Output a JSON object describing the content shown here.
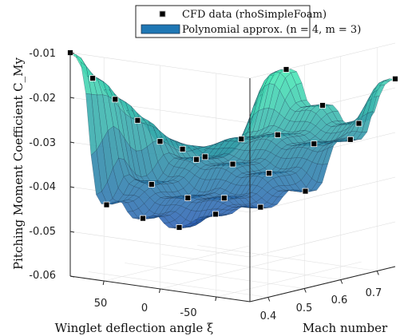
{
  "chart_data": {
    "type": "surface3d",
    "title": "",
    "zlabel": "Pitching Moment Coefficient C_My",
    "xlabel": "Winglet deflection angle ξ",
    "ylabel": "Mach number",
    "z_ticks": [
      "-0.06",
      "-0.05",
      "-0.04",
      "-0.03",
      "-0.02",
      "-0.01"
    ],
    "xi_ticks": [
      "50",
      "0",
      "-50"
    ],
    "mach_ticks": [
      "0.4",
      "0.5",
      "0.6",
      "0.7"
    ],
    "zlim": [
      -0.06,
      -0.01
    ],
    "xi_range": [
      -80,
      80
    ],
    "mach_range": [
      0.35,
      0.75
    ],
    "grid": true,
    "legend_position": "top",
    "legend": [
      {
        "label": "CFD data (rhoSimpleFoam)",
        "marker": "square",
        "color": "#000000"
      },
      {
        "label": "Polynomial approx. (n = 4, m = 3)",
        "marker": "patch",
        "color": "#1f77b4"
      }
    ],
    "colors": {
      "surface_low": "#2c5fb5",
      "surface_mid": "#2f8fa8",
      "surface_high": "#46e6b4",
      "edge": "#1b3550"
    },
    "cfd_points": [
      {
        "xi": 80,
        "mach": 0.35,
        "cmy": -0.01
      },
      {
        "xi": 60,
        "mach": 0.35,
        "cmy": -0.015
      },
      {
        "xi": 40,
        "mach": 0.35,
        "cmy": -0.019
      },
      {
        "xi": 20,
        "mach": 0.35,
        "cmy": -0.023
      },
      {
        "xi": 0,
        "mach": 0.35,
        "cmy": -0.027
      },
      {
        "xi": -20,
        "mach": 0.35,
        "cmy": -0.028
      },
      {
        "xi": -40,
        "mach": 0.35,
        "cmy": -0.029
      },
      {
        "xi": 80,
        "mach": 0.45,
        "cmy": -0.046
      },
      {
        "xi": 40,
        "mach": 0.45,
        "cmy": -0.04
      },
      {
        "xi": 0,
        "mach": 0.45,
        "cmy": -0.033
      },
      {
        "xi": -40,
        "mach": 0.45,
        "cmy": -0.027
      },
      {
        "xi": -80,
        "mach": 0.45,
        "cmy": -0.01
      },
      {
        "xi": 80,
        "mach": 0.55,
        "cmy": -0.051
      },
      {
        "xi": 40,
        "mach": 0.55,
        "cmy": -0.045
      },
      {
        "xi": 0,
        "mach": 0.55,
        "cmy": -0.036
      },
      {
        "xi": -40,
        "mach": 0.55,
        "cmy": -0.028
      },
      {
        "xi": -80,
        "mach": 0.55,
        "cmy": -0.02
      },
      {
        "xi": 80,
        "mach": 0.65,
        "cmy": -0.055
      },
      {
        "xi": 40,
        "mach": 0.65,
        "cmy": -0.047
      },
      {
        "xi": 0,
        "mach": 0.65,
        "cmy": -0.04
      },
      {
        "xi": -40,
        "mach": 0.65,
        "cmy": -0.032
      },
      {
        "xi": -80,
        "mach": 0.65,
        "cmy": -0.026
      },
      {
        "xi": 80,
        "mach": 0.75,
        "cmy": -0.054
      },
      {
        "xi": 40,
        "mach": 0.75,
        "cmy": -0.051
      },
      {
        "xi": 0,
        "mach": 0.75,
        "cmy": -0.046
      },
      {
        "xi": -40,
        "mach": 0.75,
        "cmy": -0.033
      },
      {
        "xi": -80,
        "mach": 0.75,
        "cmy": -0.018
      }
    ]
  }
}
